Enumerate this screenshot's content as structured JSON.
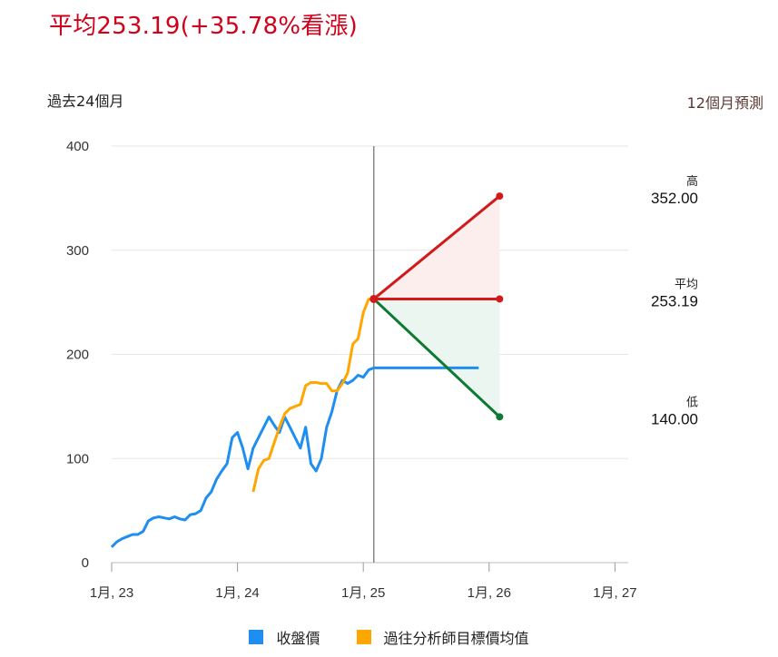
{
  "headline": "平均253.19(+35.78%看漲)",
  "period_left": "過去24個月",
  "period_right": "12個月預測",
  "colors": {
    "close": "#1e8ef0",
    "target": "#ffa600",
    "high": "#d11a1a",
    "avg": "#d11a1a",
    "low": "#0d7a33",
    "divider": "#888888"
  },
  "legend": [
    {
      "label": "收盤價",
      "color": "#1e8ef0"
    },
    {
      "label": "過往分析師目標價均值",
      "color": "#ffa600"
    }
  ],
  "forecast": {
    "high": {
      "label": "高",
      "value": "352.00",
      "num": 352
    },
    "avg": {
      "label": "平均",
      "value": "253.19",
      "num": 253.19
    },
    "low": {
      "label": "低",
      "value": "140.00",
      "num": 140
    }
  },
  "chart_data": {
    "type": "line",
    "ylim": [
      0,
      400
    ],
    "yticks": [
      "0",
      "100",
      "200",
      "300",
      "400"
    ],
    "xticks": [
      "1月, 23",
      "1月, 24",
      "1月, 25",
      "1月, 26",
      "1月, 27"
    ],
    "xlim": [
      0,
      48
    ],
    "grid": true,
    "series": [
      {
        "name": "收盤價",
        "x": [
          0,
          0.5,
          1,
          1.5,
          2,
          2.5,
          3,
          3.5,
          4,
          4.5,
          5,
          5.5,
          6,
          6.5,
          7,
          7.5,
          8,
          8.5,
          9,
          9.5,
          10,
          10.5,
          11,
          11.5,
          12,
          12.5,
          13,
          13.5,
          14,
          14.5,
          15,
          15.5,
          16,
          16.5,
          17,
          17.5,
          18,
          18.5,
          19,
          19.5,
          20,
          20.5,
          21,
          21.5,
          22,
          22.5,
          23,
          23.5,
          24,
          24.5,
          25
        ],
        "values": [
          15,
          20,
          23,
          25,
          27,
          27,
          30,
          40,
          43,
          44,
          43,
          42,
          44,
          42,
          41,
          46,
          47,
          50,
          62,
          68,
          80,
          88,
          95,
          120,
          125,
          110,
          90,
          110,
          120,
          130,
          140,
          132,
          125,
          140,
          130,
          120,
          110,
          130,
          95,
          88,
          100,
          130,
          145,
          165,
          175,
          172,
          175,
          180,
          178,
          185,
          187
        ]
      },
      {
        "name": "過往分析師目標價均值",
        "x": [
          13.5,
          14,
          14.5,
          15,
          15.5,
          16,
          16.5,
          17,
          17.5,
          18,
          18.5,
          19,
          19.5,
          20,
          20.5,
          21,
          21.5,
          22,
          22.5,
          23,
          23.5,
          24,
          24.5,
          25
        ],
        "values": [
          68,
          90,
          98,
          100,
          115,
          130,
          143,
          148,
          150,
          152,
          170,
          173,
          173,
          172,
          172,
          165,
          165,
          172,
          182,
          210,
          215,
          240,
          253,
          253.19
        ]
      },
      {
        "name": "收盤價預測",
        "x": [
          25,
          35
        ],
        "values": [
          187,
          187
        ]
      }
    ]
  }
}
